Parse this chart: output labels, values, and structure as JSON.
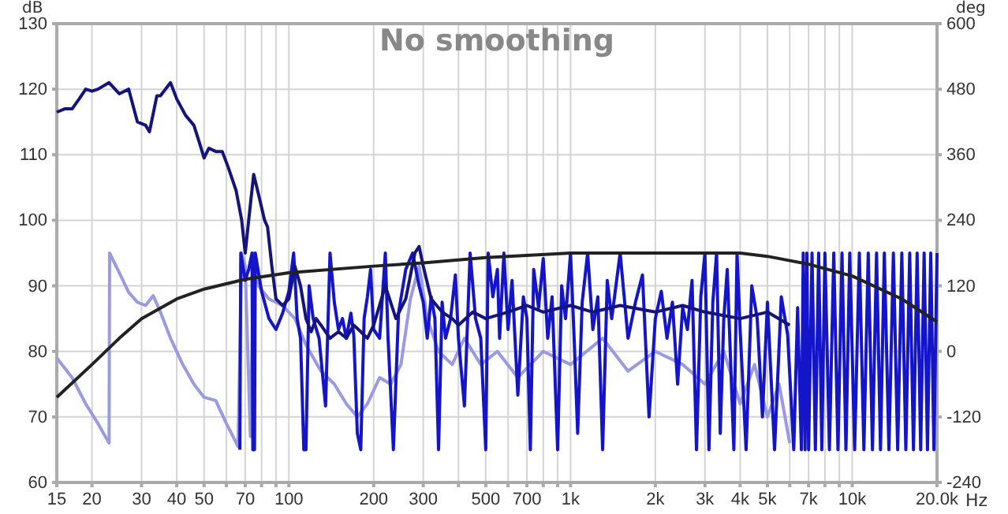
{
  "chart_data": {
    "type": "line",
    "title": "No smoothing",
    "xlabel": "Hz",
    "ylabel": "dB",
    "y2label": "deg",
    "log": "x",
    "grid": true,
    "line_style": "solid",
    "marker": "none",
    "xlim": [
      15,
      20000
    ],
    "xticks": [
      15,
      20,
      30,
      40,
      50,
      {
        "value": 60,
        "label": null
      },
      70,
      {
        "value": 80,
        "label": null
      },
      {
        "value": 90,
        "label": null
      },
      100,
      200,
      300,
      {
        "value": 400,
        "label": null
      },
      500,
      {
        "value": 600,
        "label": null
      },
      700,
      {
        "value": 800,
        "label": null
      },
      {
        "value": 900,
        "label": null
      },
      {
        "value": 1000,
        "label": "1k"
      },
      {
        "value": 2000,
        "label": "2k"
      },
      {
        "value": 3000,
        "label": "3k"
      },
      {
        "value": 4000,
        "label": "4k"
      },
      {
        "value": 5000,
        "label": "5k"
      },
      {
        "value": 6000,
        "label": null
      },
      {
        "value": 7000,
        "label": "7k"
      },
      {
        "value": 8000,
        "label": null
      },
      {
        "value": 9000,
        "label": null
      },
      {
        "value": 10000,
        "label": "10k"
      },
      {
        "value": 20000,
        "label": "20.0k"
      }
    ],
    "ylim": [
      60,
      130
    ],
    "yticks": [
      60,
      70,
      80,
      90,
      100,
      110,
      120,
      130
    ],
    "y2lim": [
      -240,
      600
    ],
    "y2ticks": [
      -240,
      -120,
      0,
      120,
      240,
      360,
      480,
      600
    ],
    "series": [
      {
        "color": "#9a9ae0",
        "axis": "y2",
        "x": [
          15,
          17,
          19,
          21,
          23,
          23.1,
          25,
          27,
          29,
          31,
          33,
          35,
          38,
          42,
          46,
          50,
          55,
          60,
          66,
          68,
          70,
          73,
          75,
          78,
          85,
          95,
          105,
          115,
          130,
          145,
          160,
          175,
          190,
          210,
          230,
          250,
          270,
          290,
          310,
          340,
          380,
          420,
          480,
          550,
          650,
          800,
          1000,
          1300,
          1600,
          2000,
          2500,
          3000,
          3500,
          4000,
          4500,
          5000,
          5500,
          6000
        ],
        "values": [
          -12,
          -48,
          -96,
          -132,
          -168,
          180,
          144,
          108,
          90,
          84,
          102,
          72,
          24,
          -24,
          -60,
          -84,
          -90,
          -132,
          -174,
          180,
          156,
          -156,
          180,
          120,
          96,
          84,
          60,
          12,
          -36,
          -60,
          -96,
          -120,
          -96,
          -48,
          -60,
          -24,
          96,
          156,
          60,
          0,
          -24,
          24,
          -24,
          0,
          -48,
          0,
          -24,
          24,
          -36,
          0,
          -24,
          -60,
          0,
          -96,
          -24,
          -120,
          -60,
          -168
        ]
      },
      {
        "color": "#1414c8",
        "axis": "y2",
        "x": [
          67,
          67.5,
          70,
          72,
          74,
          74.5,
          75.5,
          76,
          80,
          85,
          90,
          95,
          100,
          104,
          107,
          110,
          113,
          115,
          118,
          122,
          128,
          135,
          140,
          145,
          150,
          155,
          160,
          166,
          170,
          175,
          180,
          185,
          190,
          195,
          200,
          210,
          220,
          225,
          235,
          245,
          260,
          275,
          290,
          300,
          310,
          320,
          330,
          340,
          350,
          360,
          375,
          390,
          400,
          420,
          440,
          460,
          480,
          500,
          510,
          530,
          550,
          560,
          580,
          600,
          620,
          650,
          680,
          700,
          720,
          740,
          770,
          800,
          830,
          860,
          900,
          930,
          960,
          1000,
          1030,
          1060,
          1100,
          1150,
          1200,
          1250,
          1300,
          1350,
          1400,
          1500,
          1600,
          1700,
          1800,
          1900,
          2000,
          2100,
          2200,
          2300,
          2400,
          2500,
          2600,
          2700,
          2800,
          2900,
          3000,
          3100,
          3200,
          3300,
          3400,
          3500,
          3600,
          3800,
          3900,
          4000,
          4200,
          4400,
          4600,
          4800,
          5000,
          5300,
          5600,
          5900,
          6200,
          6400,
          6600,
          6700,
          6800,
          6900,
          7000,
          7200,
          7400,
          7600,
          7800,
          8000,
          8300,
          8600,
          8900,
          9200,
          9500,
          9800,
          10200,
          10600,
          11000,
          11400,
          11800,
          12200,
          12600,
          13000,
          13500,
          14000,
          14500,
          15000,
          15500,
          16000,
          16500,
          17000,
          17500,
          18000,
          18500,
          19000,
          19500,
          20000
        ],
        "values": [
          -180,
          180,
          130,
          150,
          180,
          -180,
          -180,
          180,
          110,
          60,
          40,
          70,
          110,
          180,
          60,
          24,
          -180,
          -180,
          120,
          60,
          24,
          -100,
          180,
          90,
          40,
          60,
          24,
          70,
          30,
          -150,
          -180,
          60,
          100,
          150,
          40,
          24,
          180,
          24,
          -180,
          70,
          150,
          180,
          120,
          90,
          24,
          100,
          60,
          -180,
          90,
          24,
          60,
          140,
          24,
          -100,
          180,
          60,
          24,
          -180,
          180,
          100,
          150,
          24,
          180,
          40,
          130,
          -80,
          100,
          60,
          -180,
          150,
          80,
          170,
          24,
          100,
          -180,
          120,
          60,
          180,
          24,
          -150,
          90,
          180,
          40,
          100,
          -180,
          130,
          60,
          180,
          24,
          90,
          140,
          -120,
          60,
          110,
          24,
          90,
          -60,
          80,
          40,
          130,
          -180,
          100,
          180,
          -180,
          90,
          180,
          -150,
          60,
          150,
          -180,
          180,
          40,
          -180,
          120,
          60,
          -120,
          90,
          -180,
          100,
          30,
          -180,
          80,
          -180,
          180,
          -180,
          180,
          -180,
          180,
          -180,
          180,
          -180,
          180,
          -180,
          180,
          -180,
          180,
          -180,
          180,
          -180,
          180,
          -180,
          180,
          -180,
          180,
          -180,
          180,
          -180,
          180,
          -180,
          180,
          -180,
          180,
          -180,
          180,
          -180,
          180,
          -180,
          180,
          -180,
          180
        ]
      },
      {
        "color": "#14147a",
        "x": [
          15,
          16,
          17,
          18,
          19,
          20,
          21,
          23,
          25,
          27,
          29,
          31,
          32,
          34,
          35,
          38,
          40,
          43,
          46,
          48,
          50,
          52,
          55,
          58,
          61,
          65,
          68,
          70,
          72,
          75,
          78,
          82,
          84,
          87,
          90,
          95,
          100,
          105,
          110,
          115,
          120,
          125,
          130,
          140,
          150,
          160,
          170,
          180,
          190,
          200,
          220,
          240,
          260,
          280,
          290,
          300,
          320,
          350,
          380,
          400,
          450,
          500,
          600,
          700,
          800,
          1000,
          1200,
          1500,
          2000,
          2500,
          3000,
          4000,
          5000,
          6000
        ],
        "values": [
          116.5,
          117,
          117,
          118.5,
          120,
          119.7,
          120,
          121,
          119.3,
          120,
          115,
          114.5,
          113.5,
          119,
          119,
          121,
          118.5,
          116,
          114.5,
          112,
          109.5,
          111,
          110.5,
          110.5,
          108,
          104.5,
          100,
          95,
          100,
          107,
          104,
          100,
          99,
          93,
          88,
          87,
          88,
          93,
          90,
          85,
          83,
          85,
          84,
          82,
          83,
          82,
          84,
          83,
          82,
          84,
          90,
          85,
          88,
          95,
          96,
          93,
          88,
          86,
          85,
          84,
          86,
          85,
          86,
          87,
          86,
          87,
          86,
          87,
          86,
          87,
          86,
          85,
          86,
          84
        ]
      },
      {
        "color": "#222222",
        "x": [
          15,
          20,
          25,
          30,
          40,
          50,
          70,
          100,
          200,
          300,
          500,
          1000,
          2000,
          4000,
          5000,
          7000,
          10000,
          15000,
          20000
        ],
        "values": [
          73,
          78,
          82,
          85,
          88,
          89.5,
          91,
          92,
          93,
          93.5,
          94.3,
          95,
          95,
          95,
          94.5,
          93.3,
          91.5,
          88,
          84.5
        ]
      }
    ]
  }
}
